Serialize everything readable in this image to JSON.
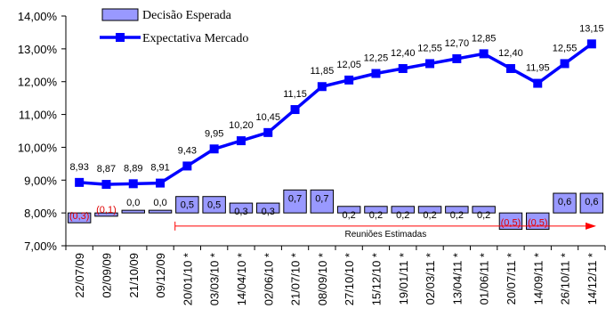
{
  "chart_data": {
    "type": "bar+line",
    "categories": [
      "22/07/09",
      "02/09/09",
      "21/10/09",
      "09/12/09",
      "20/01/10 *",
      "03/03/10 *",
      "14/04/10 *",
      "02/06/10 *",
      "21/07/10 *",
      "08/09/10 *",
      "27/10/10 *",
      "15/12/10 *",
      "19/01/11 *",
      "02/03/11 *",
      "13/04/11 *",
      "01/06/11 *",
      "20/07/11 *",
      "14/09/11 *",
      "26/10/11 *",
      "14/12/11 *"
    ],
    "series": [
      {
        "name": "Decisão Esperada",
        "type": "bar",
        "axis_offset": 8.0,
        "values": [
          -0.3,
          -0.1,
          0.0,
          0.0,
          0.5,
          0.5,
          0.3,
          0.3,
          0.7,
          0.7,
          0.2,
          0.2,
          0.2,
          0.2,
          0.2,
          0.2,
          -0.5,
          -0.5,
          0.6,
          0.6
        ],
        "labels": [
          "(0,3)",
          "(0,1)",
          "0,0",
          "0,0",
          "0,5",
          "0,5",
          "0,3",
          "0,3",
          "0,7",
          "0,7",
          "0,2",
          "0,2",
          "0,2",
          "0,2",
          "0,2",
          "0,2",
          "(0,5)",
          "(0,5)",
          "0,6",
          "0,6"
        ]
      },
      {
        "name": "Expectativa Mercado",
        "type": "line",
        "values": [
          8.93,
          8.87,
          8.89,
          8.91,
          9.43,
          9.95,
          10.2,
          10.45,
          11.15,
          11.85,
          12.05,
          12.25,
          12.4,
          12.55,
          12.7,
          12.85,
          12.4,
          11.95,
          12.55,
          13.15
        ],
        "labels": [
          "8,93",
          "8,87",
          "8,89",
          "8,91",
          "9,43",
          "9,95",
          "10,20",
          "10,45",
          "11,15",
          "11,85",
          "12,05",
          "12,25",
          "12,40",
          "12,55",
          "12,70",
          "12,85",
          "12,40",
          "11,95",
          "12,55",
          "13,15"
        ]
      }
    ],
    "ylim": [
      7.0,
      14.0
    ],
    "yticks": [
      "7,00%",
      "7,00%",
      "8,00%",
      "9,00%",
      "10,00%",
      "11,00%",
      "12,00%",
      "13,00%",
      "14,00%"
    ],
    "yticks_values": [
      7,
      7,
      8,
      9,
      10,
      11,
      12,
      13,
      14
    ],
    "annotation": {
      "text": "Reuniões Estimadas",
      "from_index": 4,
      "to_index": 19,
      "at_value": 7.6
    },
    "legend_position": "top-left",
    "grid": false,
    "colors": {
      "bar_fill": "#9999ff",
      "bar_border": "#000000",
      "line": "#0000ff",
      "arrow": "#ff0000",
      "negative_label": "#e00000"
    }
  }
}
